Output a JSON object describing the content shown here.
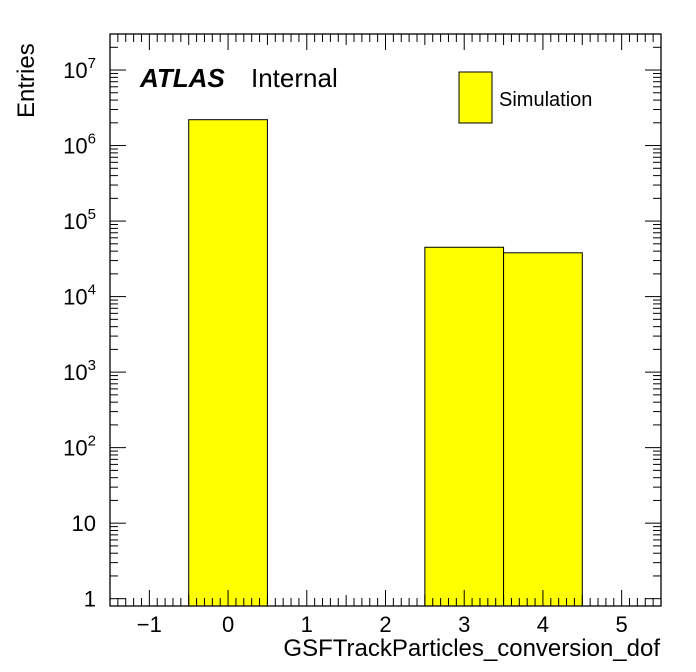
{
  "chart_data": {
    "type": "bar",
    "title": "",
    "xlabel": "GSFTrackParticles_conversion_dof",
    "ylabel": "Entries",
    "y_scale": "log",
    "xlim": [
      -1.5,
      5.5
    ],
    "ylim": [
      0.8,
      30000000
    ],
    "x_tick_labels": [
      "−1",
      "0",
      "1",
      "2",
      "3",
      "4",
      "5"
    ],
    "y_tick_labels": [
      {
        "base": "1",
        "exp": ""
      },
      {
        "base": "10",
        "exp": ""
      },
      {
        "base": "10",
        "exp": "2"
      },
      {
        "base": "10",
        "exp": "3"
      },
      {
        "base": "10",
        "exp": "4"
      },
      {
        "base": "10",
        "exp": "5"
      },
      {
        "base": "10",
        "exp": "6"
      },
      {
        "base": "10",
        "exp": "7"
      }
    ],
    "bins": [
      {
        "low": -0.5,
        "high": 0.5,
        "value": 2200000
      },
      {
        "low": 2.5,
        "high": 3.5,
        "value": 45000
      },
      {
        "low": 3.5,
        "high": 4.5,
        "value": 38000
      }
    ],
    "fill_color": "#ffff00",
    "line_color": "#000000",
    "legend": {
      "entries": [
        "Simulation"
      ],
      "position": "top-right"
    },
    "annotation": {
      "experiment": "ATLAS",
      "status": "Internal"
    }
  }
}
